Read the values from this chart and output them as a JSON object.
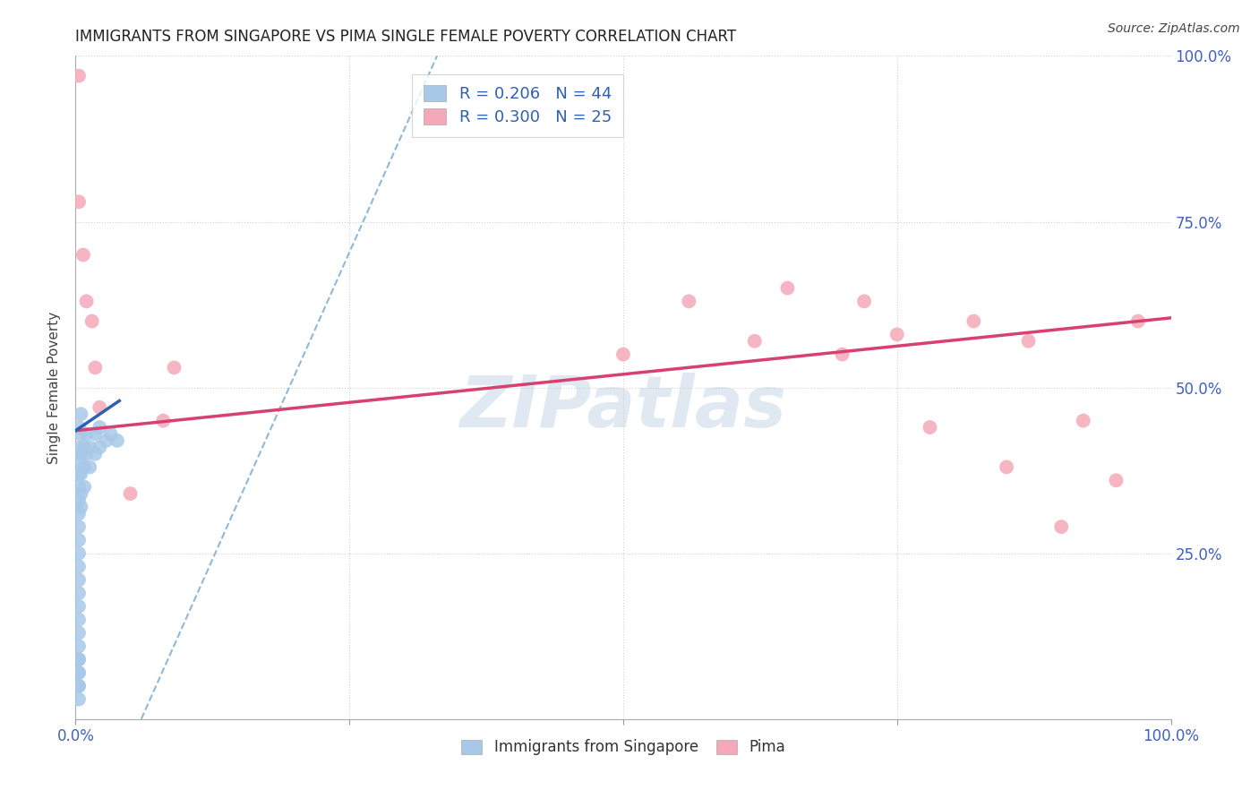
{
  "title": "IMMIGRANTS FROM SINGAPORE VS PIMA SINGLE FEMALE POVERTY CORRELATION CHART",
  "source": "Source: ZipAtlas.com",
  "ylabel": "Single Female Poverty",
  "watermark": "ZIPatlas",
  "xlim": [
    0.0,
    1.0
  ],
  "ylim": [
    0.0,
    1.0
  ],
  "blue_R": "0.206",
  "blue_N": "44",
  "pink_R": "0.300",
  "pink_N": "25",
  "blue_color": "#a8c8e8",
  "pink_color": "#f4a8b8",
  "blue_line_color": "#3060b0",
  "pink_line_color": "#d84070",
  "dashed_line_color": "#90b8d8",
  "grid_color": "#cccccc",
  "blue_scatter_x": [
    0.003,
    0.003,
    0.003,
    0.003,
    0.003,
    0.003,
    0.003,
    0.003,
    0.003,
    0.003,
    0.003,
    0.003,
    0.003,
    0.003,
    0.003,
    0.003,
    0.003,
    0.003,
    0.003,
    0.003,
    0.005,
    0.005,
    0.005,
    0.005,
    0.005,
    0.005,
    0.008,
    0.008,
    0.008,
    0.01,
    0.01,
    0.013,
    0.013,
    0.018,
    0.018,
    0.022,
    0.022,
    0.028,
    0.032,
    0.038,
    0.003,
    0.003,
    0.003,
    0.003
  ],
  "blue_scatter_y": [
    0.05,
    0.07,
    0.09,
    0.11,
    0.13,
    0.15,
    0.17,
    0.19,
    0.21,
    0.23,
    0.25,
    0.27,
    0.29,
    0.31,
    0.33,
    0.35,
    0.37,
    0.39,
    0.41,
    0.44,
    0.32,
    0.34,
    0.37,
    0.4,
    0.43,
    0.46,
    0.35,
    0.38,
    0.41,
    0.4,
    0.43,
    0.38,
    0.41,
    0.4,
    0.43,
    0.41,
    0.44,
    0.42,
    0.43,
    0.42,
    0.03,
    0.05,
    0.07,
    0.09
  ],
  "pink_scatter_x": [
    0.003,
    0.003,
    0.007,
    0.01,
    0.015,
    0.018,
    0.022,
    0.05,
    0.08,
    0.09,
    0.5,
    0.56,
    0.62,
    0.65,
    0.7,
    0.72,
    0.75,
    0.78,
    0.82,
    0.85,
    0.87,
    0.9,
    0.92,
    0.95,
    0.97
  ],
  "pink_scatter_y": [
    0.97,
    0.78,
    0.7,
    0.63,
    0.6,
    0.53,
    0.47,
    0.34,
    0.45,
    0.53,
    0.55,
    0.63,
    0.57,
    0.65,
    0.55,
    0.63,
    0.58,
    0.44,
    0.6,
    0.38,
    0.57,
    0.29,
    0.45,
    0.36,
    0.6
  ],
  "pink_trendline_x": [
    0.0,
    1.0
  ],
  "pink_trendline_y": [
    0.435,
    0.605
  ],
  "blue_trendline_x": [
    0.0,
    0.04
  ],
  "blue_trendline_y": [
    0.435,
    0.48
  ],
  "dashed_line_x": [
    0.06,
    0.33
  ],
  "dashed_line_y": [
    0.0,
    1.0
  ]
}
